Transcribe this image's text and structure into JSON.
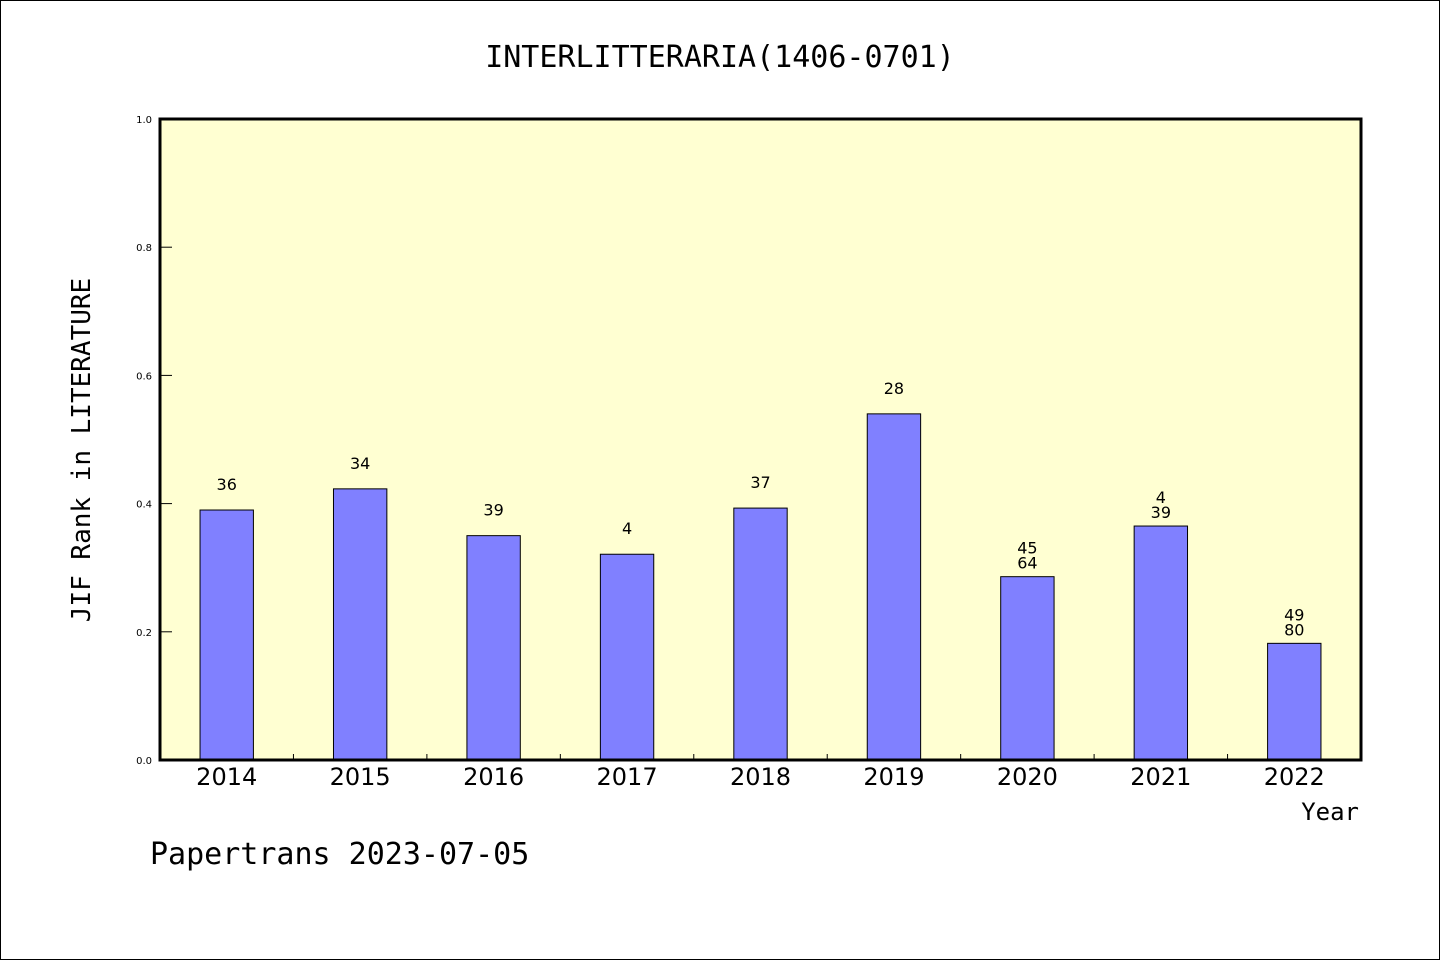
{
  "chart_data": {
    "type": "bar",
    "title": "INTERLITTERARIA(1406-0701)",
    "xlabel": "Year",
    "ylabel": "JIF Rank in LITERATURE",
    "ylim": [
      0.0,
      1.0
    ],
    "yticks": [
      "0.0",
      "0.2",
      "0.4",
      "0.6",
      "0.8",
      "1.0"
    ],
    "categories": [
      "2014",
      "2015",
      "2016",
      "2017",
      "2018",
      "2019",
      "2020",
      "2021",
      "2022"
    ],
    "values": [
      0.39,
      0.423,
      0.35,
      0.321,
      0.393,
      0.54,
      0.286,
      0.365,
      0.182
    ],
    "data_labels": [
      [
        "36"
      ],
      [
        "34"
      ],
      [
        "39"
      ],
      [
        "4"
      ],
      [
        "37"
      ],
      [
        "28"
      ],
      [
        "45",
        "64"
      ],
      [
        "4",
        "39"
      ],
      [
        "49",
        "80"
      ]
    ],
    "colors": {
      "plot_background": "#ffffd2",
      "bar_fill": "#8080ff",
      "bar_stroke": "#000000"
    },
    "grid": false,
    "legend": "none"
  },
  "footer": {
    "text": "Papertrans 2023-07-05"
  }
}
